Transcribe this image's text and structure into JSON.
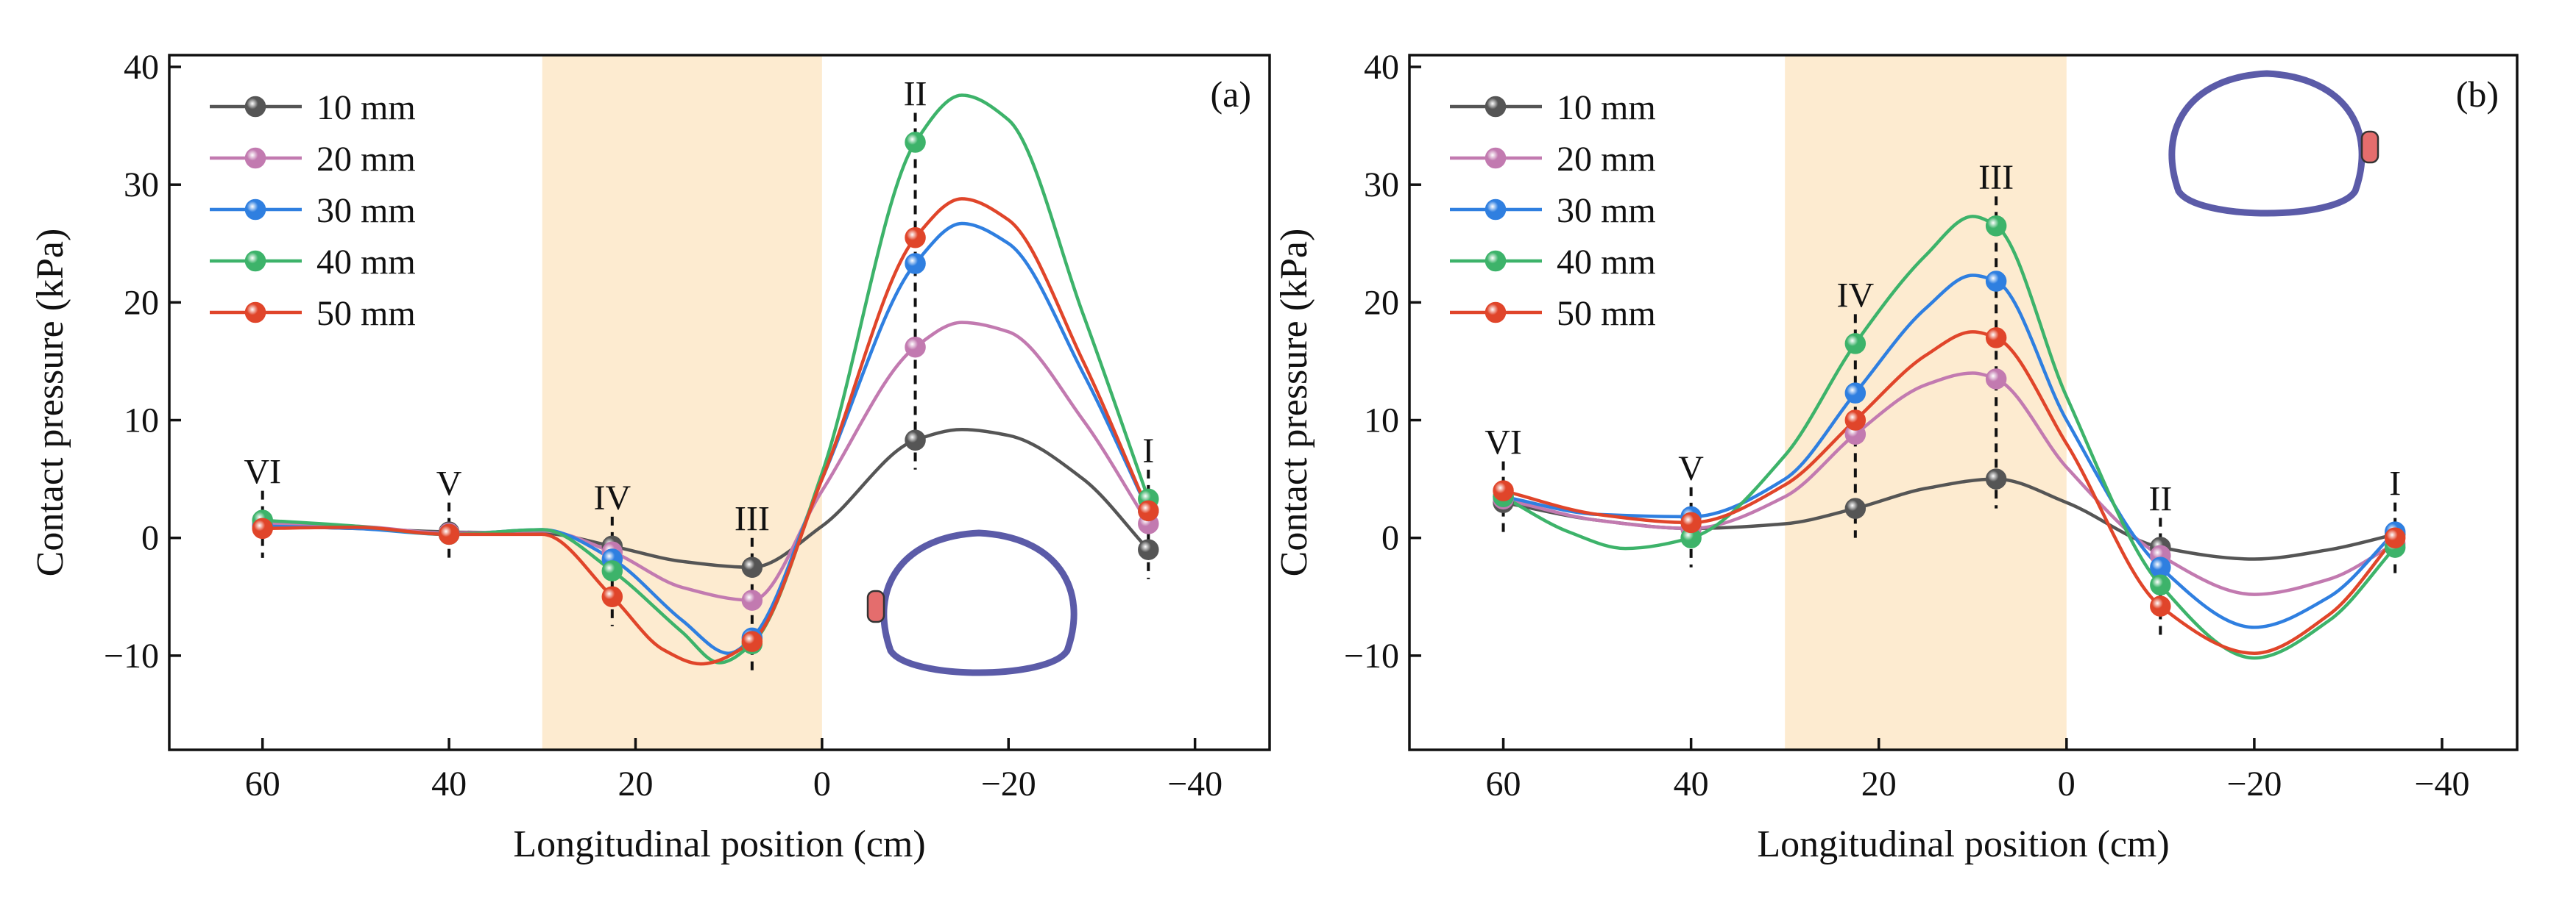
{
  "figure": {
    "ylabel": "Contact pressure  (kPa)",
    "xlabel": "Longitudinal position (cm)"
  },
  "chart_data": [
    {
      "type": "line",
      "panel_label": "(a)",
      "xlabel": "Longitudinal position (cm)",
      "ylabel": "Contact pressure  (kPa)",
      "xlim": [
        70,
        -48
      ],
      "ylim": [
        -18,
        41
      ],
      "x_reversed": true,
      "xticks": [
        60,
        40,
        20,
        0,
        -20,
        -40
      ],
      "xtick_labels": [
        "60",
        "40",
        "20",
        "0",
        "−20",
        "−40"
      ],
      "yticks": [
        -10,
        0,
        10,
        20,
        30,
        40
      ],
      "ytick_labels": [
        "−10",
        "0",
        "10",
        "20",
        "30",
        "40"
      ],
      "grid": false,
      "legend_position": "top-left",
      "shaded_region": {
        "x": [
          30,
          0
        ],
        "color": "#fdebd0"
      },
      "inset": {
        "shape": "tunnel-cross-section",
        "marker_side": "left",
        "stroke_color": "#5b5ba8",
        "marker_color": "#e46d6d"
      },
      "section_markers": [
        {
          "label": "VI",
          "x": 60
        },
        {
          "label": "V",
          "x": 40
        },
        {
          "label": "IV",
          "x": 22.5
        },
        {
          "label": "III",
          "x": 7.5
        },
        {
          "label": "II",
          "x": -10
        },
        {
          "label": "I",
          "x": -35
        }
      ],
      "x": [
        60,
        40,
        22.5,
        7.5,
        -10,
        -35
      ],
      "series": [
        {
          "name": "10 mm",
          "color": "#555555",
          "values": [
            1.0,
            0.5,
            -0.7,
            -2.5,
            8.3,
            -1.0
          ],
          "curve": [
            [
              60,
              1.0
            ],
            [
              50,
              0.8
            ],
            [
              40,
              0.5
            ],
            [
              30,
              0.4
            ],
            [
              22.5,
              -0.7
            ],
            [
              15,
              -2.0
            ],
            [
              7.5,
              -2.5
            ],
            [
              0,
              1.0
            ],
            [
              -10,
              8.3
            ],
            [
              -15,
              9.2
            ],
            [
              -20,
              8.7
            ],
            [
              -28,
              5.0
            ],
            [
              -35,
              -1.0
            ]
          ]
        },
        {
          "name": "20 mm",
          "color": "#c27ab0",
          "values": [
            1.2,
            0.4,
            -1.2,
            -5.3,
            16.2,
            1.2
          ],
          "curve": [
            [
              60,
              1.2
            ],
            [
              50,
              1.0
            ],
            [
              40,
              0.4
            ],
            [
              30,
              0.6
            ],
            [
              22.5,
              -1.2
            ],
            [
              15,
              -4.2
            ],
            [
              7.5,
              -5.3
            ],
            [
              0,
              4.0
            ],
            [
              -10,
              16.2
            ],
            [
              -15,
              18.3
            ],
            [
              -20,
              17.5
            ],
            [
              -28,
              10.0
            ],
            [
              -35,
              1.2
            ]
          ]
        },
        {
          "name": "30 mm",
          "color": "#2f7fe0",
          "values": [
            1.0,
            0.3,
            -1.8,
            -8.5,
            23.3,
            2.3
          ],
          "curve": [
            [
              60,
              1.0
            ],
            [
              50,
              0.8
            ],
            [
              40,
              0.3
            ],
            [
              30,
              0.7
            ],
            [
              22.5,
              -1.8
            ],
            [
              15,
              -7.0
            ],
            [
              10,
              -9.8
            ],
            [
              7.5,
              -8.5
            ],
            [
              0,
              5.0
            ],
            [
              -10,
              23.3
            ],
            [
              -15,
              26.7
            ],
            [
              -20,
              25.0
            ],
            [
              -28,
              14.0
            ],
            [
              -35,
              2.3
            ]
          ]
        },
        {
          "name": "40 mm",
          "color": "#3db36a",
          "values": [
            1.5,
            0.3,
            -2.8,
            -9.0,
            33.6,
            3.3
          ],
          "curve": [
            [
              60,
              1.5
            ],
            [
              50,
              1.0
            ],
            [
              40,
              0.3
            ],
            [
              30,
              0.7
            ],
            [
              22.5,
              -2.8
            ],
            [
              15,
              -8.0
            ],
            [
              11,
              -10.6
            ],
            [
              7.5,
              -9.0
            ],
            [
              0,
              5.5
            ],
            [
              -10,
              33.6
            ],
            [
              -15,
              37.6
            ],
            [
              -20,
              35.5
            ],
            [
              -28,
              19.0
            ],
            [
              -35,
              3.3
            ]
          ]
        },
        {
          "name": "50 mm",
          "color": "#e0452a",
          "values": [
            0.8,
            0.3,
            -5.0,
            -8.8,
            25.5,
            2.3
          ],
          "curve": [
            [
              60,
              0.8
            ],
            [
              50,
              0.9
            ],
            [
              40,
              0.3
            ],
            [
              30,
              0.3
            ],
            [
              22.5,
              -5.0
            ],
            [
              17,
              -9.5
            ],
            [
              13,
              -10.7
            ],
            [
              7.5,
              -8.8
            ],
            [
              0,
              5.0
            ],
            [
              -10,
              25.5
            ],
            [
              -15,
              28.8
            ],
            [
              -20,
              27.0
            ],
            [
              -28,
              15.0
            ],
            [
              -35,
              2.3
            ]
          ]
        }
      ]
    },
    {
      "type": "line",
      "panel_label": "(b)",
      "xlabel": "Longitudinal position (cm)",
      "ylabel": "Contact pressure  (kPa)",
      "xlim": [
        70,
        -48
      ],
      "ylim": [
        -18,
        41
      ],
      "x_reversed": true,
      "xticks": [
        60,
        40,
        20,
        0,
        -20,
        -40
      ],
      "xtick_labels": [
        "60",
        "40",
        "20",
        "0",
        "−20",
        "−40"
      ],
      "yticks": [
        -10,
        0,
        10,
        20,
        30,
        40
      ],
      "ytick_labels": [
        "−10",
        "0",
        "10",
        "20",
        "30",
        "40"
      ],
      "grid": false,
      "legend_position": "top-left",
      "shaded_region": {
        "x": [
          30,
          0
        ],
        "color": "#fdebd0"
      },
      "inset": {
        "shape": "tunnel-cross-section",
        "marker_side": "right",
        "stroke_color": "#5b5ba8",
        "marker_color": "#e46d6d"
      },
      "section_markers": [
        {
          "label": "VI",
          "x": 60
        },
        {
          "label": "V",
          "x": 40
        },
        {
          "label": "IV",
          "x": 22.5
        },
        {
          "label": "III",
          "x": 7.5
        },
        {
          "label": "II",
          "x": -10
        },
        {
          "label": "I",
          "x": -35
        }
      ],
      "x": [
        60,
        40,
        22.5,
        7.5,
        -10,
        -35
      ],
      "series": [
        {
          "name": "10 mm",
          "color": "#555555",
          "values": [
            3.0,
            0.8,
            2.5,
            5.0,
            -0.8,
            0.3
          ],
          "curve": [
            [
              60,
              3.0
            ],
            [
              50,
              1.5
            ],
            [
              40,
              0.8
            ],
            [
              30,
              1.2
            ],
            [
              22.5,
              2.5
            ],
            [
              15,
              4.2
            ],
            [
              7.5,
              5.0
            ],
            [
              0,
              3.0
            ],
            [
              -10,
              -0.8
            ],
            [
              -20,
              -1.8
            ],
            [
              -28,
              -1.0
            ],
            [
              -35,
              0.3
            ]
          ]
        },
        {
          "name": "20 mm",
          "color": "#c27ab0",
          "values": [
            3.3,
            0.8,
            8.8,
            13.5,
            -1.5,
            -0.5
          ],
          "curve": [
            [
              60,
              3.3
            ],
            [
              50,
              1.5
            ],
            [
              40,
              0.8
            ],
            [
              30,
              3.5
            ],
            [
              22.5,
              8.8
            ],
            [
              15,
              13.0
            ],
            [
              10,
              14.0
            ],
            [
              7.5,
              13.5
            ],
            [
              0,
              6.0
            ],
            [
              -10,
              -1.5
            ],
            [
              -20,
              -4.8
            ],
            [
              -28,
              -3.5
            ],
            [
              -35,
              -0.5
            ]
          ]
        },
        {
          "name": "30 mm",
          "color": "#2f7fe0",
          "values": [
            3.5,
            1.8,
            12.3,
            21.8,
            -2.5,
            0.5
          ],
          "curve": [
            [
              60,
              3.5
            ],
            [
              50,
              2.0
            ],
            [
              40,
              1.8
            ],
            [
              30,
              5.0
            ],
            [
              22.5,
              12.3
            ],
            [
              15,
              19.5
            ],
            [
              10,
              22.3
            ],
            [
              7.5,
              21.8
            ],
            [
              0,
              10.0
            ],
            [
              -10,
              -2.5
            ],
            [
              -20,
              -7.6
            ],
            [
              -28,
              -5.0
            ],
            [
              -35,
              0.5
            ]
          ]
        },
        {
          "name": "40 mm",
          "color": "#3db36a",
          "values": [
            3.5,
            0.0,
            16.5,
            26.5,
            -4.0,
            -0.8
          ],
          "curve": [
            [
              60,
              3.5
            ],
            [
              53,
              0.5
            ],
            [
              47,
              -0.9
            ],
            [
              40,
              0.0
            ],
            [
              30,
              7.0
            ],
            [
              22.5,
              16.5
            ],
            [
              15,
              24.0
            ],
            [
              10,
              27.3
            ],
            [
              7.5,
              26.5
            ],
            [
              0,
              12.0
            ],
            [
              -10,
              -4.0
            ],
            [
              -20,
              -10.2
            ],
            [
              -28,
              -7.0
            ],
            [
              -35,
              -0.8
            ]
          ]
        },
        {
          "name": "50 mm",
          "color": "#e0452a",
          "values": [
            4.0,
            1.3,
            10.0,
            17.0,
            -5.8,
            0.0
          ],
          "curve": [
            [
              60,
              4.0
            ],
            [
              50,
              2.0
            ],
            [
              40,
              1.3
            ],
            [
              30,
              4.5
            ],
            [
              22.5,
              10.0
            ],
            [
              15,
              15.5
            ],
            [
              10,
              17.5
            ],
            [
              7.5,
              17.0
            ],
            [
              0,
              8.0
            ],
            [
              -10,
              -5.8
            ],
            [
              -20,
              -9.8
            ],
            [
              -28,
              -6.5
            ],
            [
              -35,
              0.0
            ]
          ]
        }
      ]
    }
  ]
}
